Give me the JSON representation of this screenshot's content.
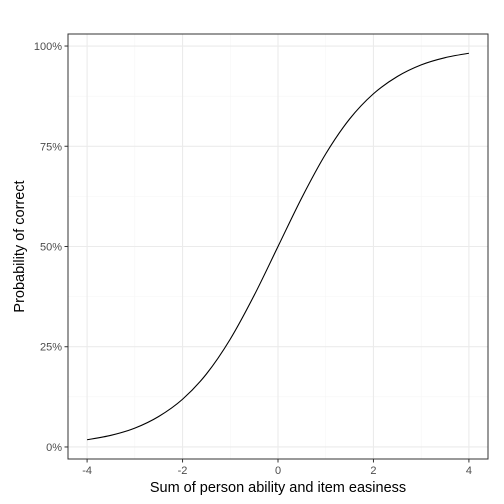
{
  "chart_data": {
    "type": "line",
    "title": "",
    "xlabel": "Sum of person ability and item easiness",
    "ylabel": "Probability of correct",
    "xlim": [
      -4.4,
      4.4
    ],
    "ylim": [
      -0.03,
      1.03
    ],
    "x_ticks": [
      -4,
      -2,
      0,
      2,
      4
    ],
    "x_tick_labels": [
      "-4",
      "-2",
      "0",
      "2",
      "4"
    ],
    "y_ticks": [
      0,
      0.25,
      0.5,
      0.75,
      1
    ],
    "y_tick_labels": [
      "0%",
      "25%",
      "50%",
      "75%",
      "100%"
    ],
    "grid": true,
    "legend": "none",
    "series": [
      {
        "x": [
          -4,
          -3.5,
          -3,
          -2.5,
          -2,
          -1.5,
          -1,
          -0.5,
          0,
          0.5,
          1,
          1.5,
          2,
          2.5,
          3,
          3.5,
          4
        ],
        "y": [
          0.018,
          0.029,
          0.047,
          0.076,
          0.119,
          0.182,
          0.269,
          0.378,
          0.5,
          0.622,
          0.731,
          0.818,
          0.881,
          0.924,
          0.953,
          0.971,
          0.982
        ]
      }
    ],
    "colors": {
      "line": "#000000",
      "grid_major": "#ebebeb",
      "grid_minor": "#f5f5f5",
      "panel_border": "#333333",
      "tick_text": "#4d4d4d"
    }
  }
}
